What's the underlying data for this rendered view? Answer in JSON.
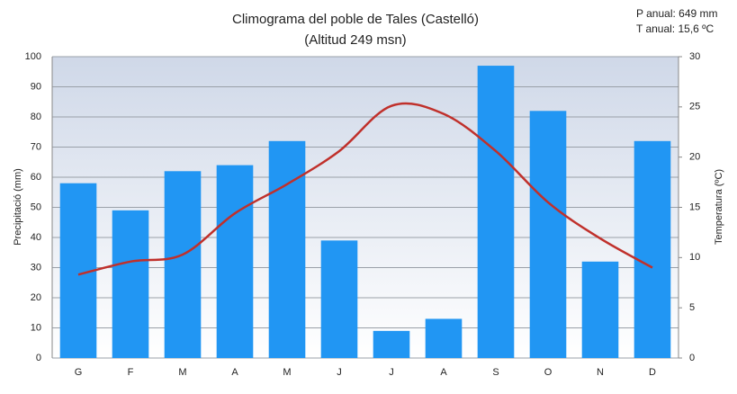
{
  "chart_data": {
    "type": "bar-line",
    "title": "Climograma del poble de Tales (Castelló)",
    "subtitle": "(Altitud 249 msn)",
    "annotations": [
      "P anual: 649 mm",
      "T anual: 15,6 ºC"
    ],
    "y_label": "Precipitació (mm)",
    "y2_label": "Temperatura (ºC)",
    "categories": [
      "G",
      "F",
      "M",
      "A",
      "M",
      "J",
      "J",
      "A",
      "S",
      "O",
      "N",
      "D"
    ],
    "series": [
      {
        "name": "Precipitació",
        "type": "bar",
        "color": "#2196f3",
        "values": [
          58,
          49,
          62,
          64,
          72,
          39,
          9,
          13,
          97,
          82,
          32,
          72
        ]
      },
      {
        "name": "Temperatura",
        "type": "line",
        "axis": "y2",
        "color": "#c0302b",
        "values": [
          8.3,
          9.6,
          10.3,
          14.4,
          17.3,
          20.6,
          25.1,
          24.3,
          20.6,
          15.5,
          11.9,
          9.0
        ]
      }
    ],
    "ylim": [
      0,
      100
    ],
    "yticks": [
      0,
      10,
      20,
      30,
      40,
      50,
      60,
      70,
      80,
      90,
      100
    ],
    "y2lim": [
      0,
      30
    ],
    "y2ticks": [
      0,
      5,
      10,
      15,
      20,
      25,
      30
    ],
    "grid": true
  }
}
